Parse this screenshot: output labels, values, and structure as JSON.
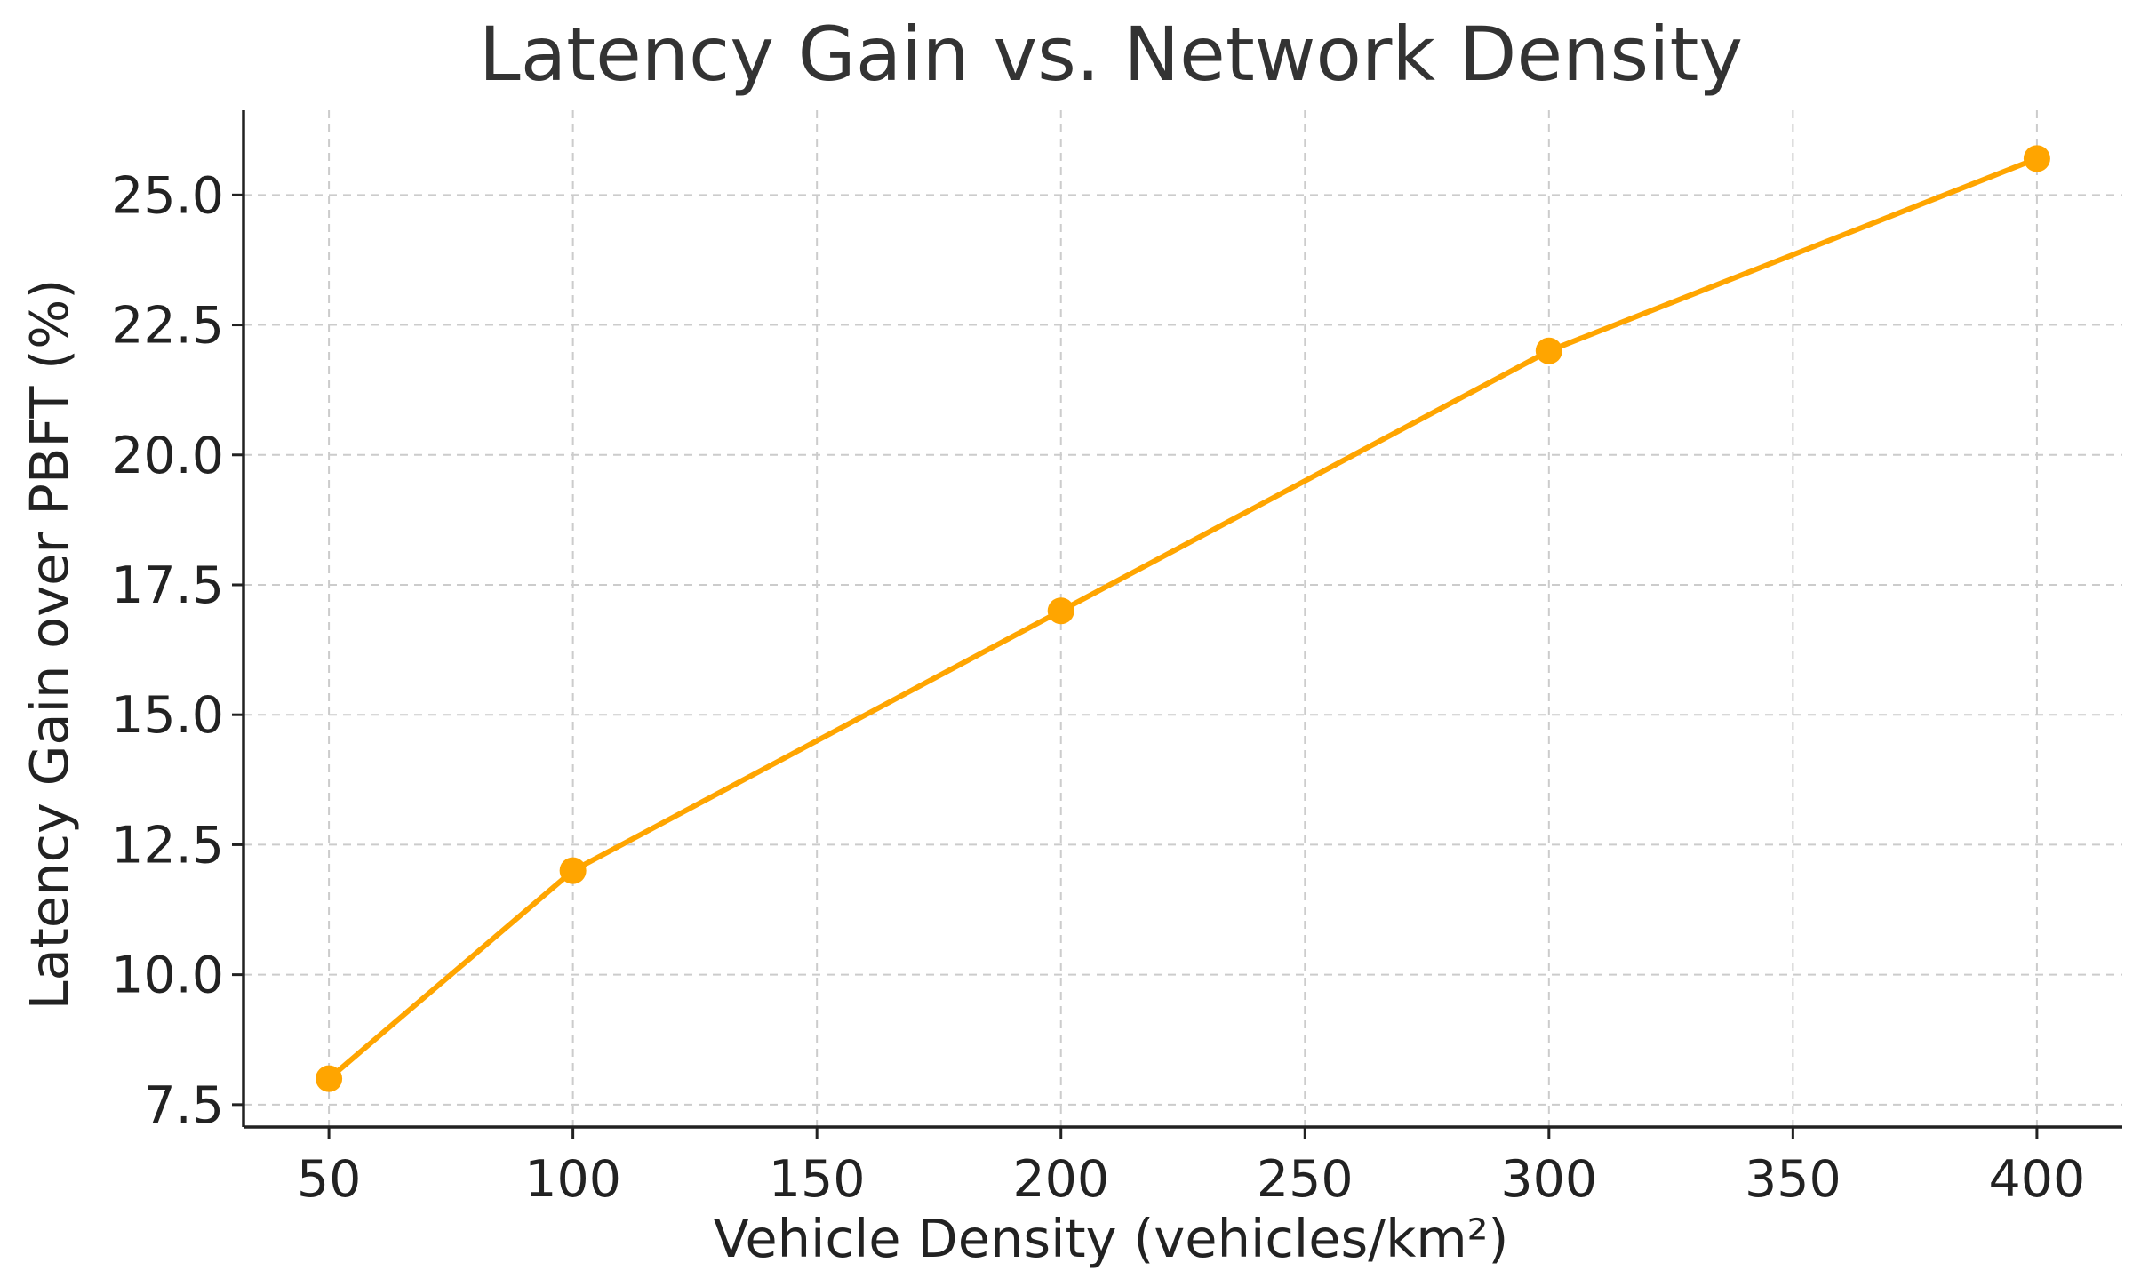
{
  "chart_data": {
    "type": "line",
    "title": "Latency Gain vs. Network Density",
    "xlabel": "Vehicle Density (vehicles/km²)",
    "ylabel": "Latency Gain over PBFT (%)",
    "x": [
      50,
      100,
      200,
      300,
      400
    ],
    "series": [
      {
        "values": [
          8.0,
          12.0,
          17.0,
          22.0,
          25.7
        ],
        "color": "#ffa500",
        "marker": "circle"
      }
    ],
    "xlim": [
      32.5,
      417.5
    ],
    "ylim": [
      7.07,
      26.63
    ],
    "xticks": [
      "50",
      "100",
      "150",
      "200",
      "250",
      "300",
      "350",
      "400"
    ],
    "yticks": [
      "7.5",
      "10.0",
      "12.5",
      "15.0",
      "17.5",
      "20.0",
      "22.5",
      "25.0"
    ],
    "grid": true
  }
}
